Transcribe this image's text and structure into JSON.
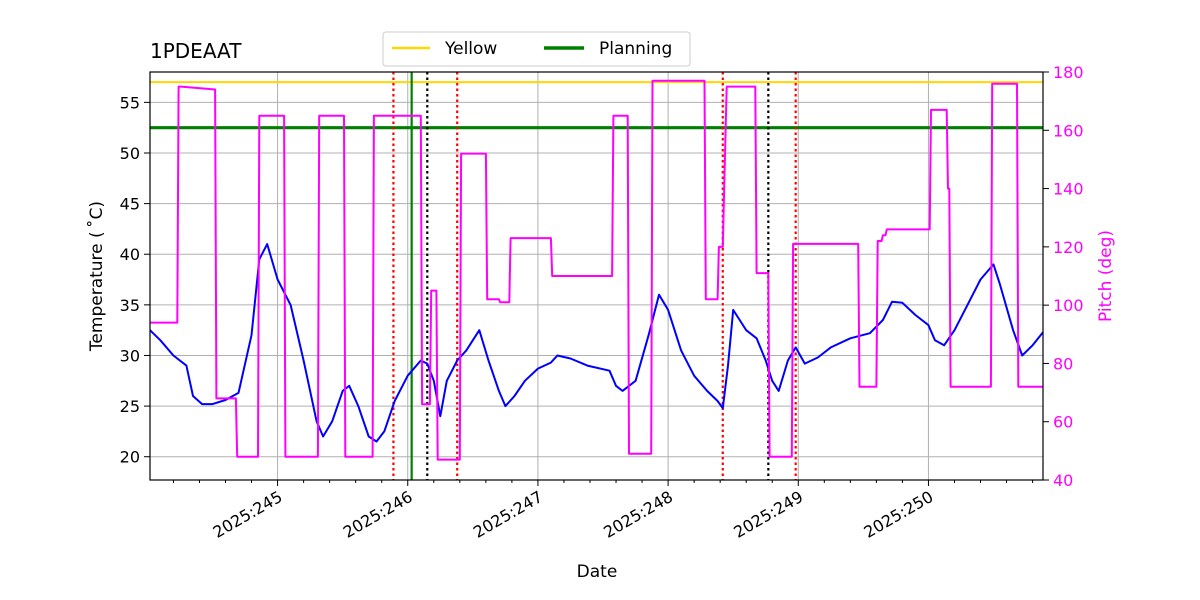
{
  "chart_data": {
    "type": "line",
    "title": "1PDEAAT",
    "xlabel": "Date",
    "ylabel": "Temperature ($^\\circ$C)",
    "ylabel_display": "Temperature ( ˚C)",
    "y2label": "Pitch (deg)",
    "xlim": [
      244.02,
      250.88
    ],
    "ylim": [
      17.7,
      58.0
    ],
    "y2lim": [
      40,
      180
    ],
    "x_ticks": [
      {
        "value": 245,
        "label": "2025:245"
      },
      {
        "value": 246,
        "label": "2025:246"
      },
      {
        "value": 247,
        "label": "2025:247"
      },
      {
        "value": 248,
        "label": "2025:248"
      },
      {
        "value": 249,
        "label": "2025:249"
      },
      {
        "value": 250,
        "label": "2025:250"
      }
    ],
    "y_ticks": [
      20,
      25,
      30,
      35,
      40,
      45,
      50,
      55
    ],
    "y2_ticks": [
      40,
      60,
      80,
      100,
      120,
      140,
      160,
      180
    ],
    "grid": true,
    "legend": {
      "placement": "top-center",
      "entries": [
        {
          "name": "Yellow",
          "color": "#ffd700"
        },
        {
          "name": "Planning",
          "color": "#008000"
        }
      ]
    },
    "hlines": [
      {
        "name": "Yellow",
        "value": 57.0,
        "color": "#ffd700"
      },
      {
        "name": "Planning",
        "value": 52.5,
        "color": "#008000"
      }
    ],
    "vlines": [
      {
        "name": "planning-marker",
        "x": 246.03,
        "color": "#008000",
        "style": "solid"
      },
      {
        "name": "red-marker",
        "x": 245.89,
        "color": "#ff0000",
        "style": "dotted"
      },
      {
        "name": "red-marker",
        "x": 246.38,
        "color": "#ff0000",
        "style": "dotted"
      },
      {
        "name": "red-marker",
        "x": 248.42,
        "color": "#ff0000",
        "style": "dotted"
      },
      {
        "name": "red-marker",
        "x": 248.98,
        "color": "#ff0000",
        "style": "dotted"
      },
      {
        "name": "black-marker",
        "x": 246.15,
        "color": "#000000",
        "style": "dotted"
      },
      {
        "name": "black-marker",
        "x": 248.77,
        "color": "#000000",
        "style": "dotted"
      }
    ],
    "series": [
      {
        "name": "Temperature",
        "axis": "left",
        "color": "#0000ff",
        "x": [
          244.02,
          244.1,
          244.2,
          244.3,
          244.35,
          244.42,
          244.5,
          244.6,
          244.7,
          244.8,
          244.86,
          244.92,
          245.0,
          245.1,
          245.2,
          245.3,
          245.35,
          245.42,
          245.5,
          245.55,
          245.62,
          245.7,
          245.76,
          245.82,
          245.9,
          246.0,
          246.1,
          246.15,
          246.2,
          246.25,
          246.3,
          246.38,
          246.45,
          246.55,
          246.62,
          246.7,
          246.75,
          246.82,
          246.9,
          247.0,
          247.1,
          247.15,
          247.25,
          247.38,
          247.55,
          247.6,
          247.65,
          247.75,
          247.85,
          247.93,
          248.0,
          248.1,
          248.2,
          248.3,
          248.38,
          248.42,
          248.46,
          248.5,
          248.55,
          248.6,
          248.68,
          248.75,
          248.8,
          248.85,
          248.92,
          248.98,
          249.05,
          249.15,
          249.25,
          249.4,
          249.55,
          249.65,
          249.72,
          249.8,
          249.9,
          250.0,
          250.05,
          250.12,
          250.2,
          250.3,
          250.4,
          250.5,
          250.55,
          250.65,
          250.72,
          250.8,
          250.88
        ],
        "y": [
          32.5,
          31.5,
          30.0,
          29.0,
          26.0,
          25.2,
          25.2,
          25.6,
          26.3,
          32.0,
          39.5,
          41.0,
          37.5,
          35.0,
          29.5,
          23.5,
          22.0,
          23.5,
          26.5,
          27.0,
          25.0,
          22.0,
          21.5,
          22.5,
          25.5,
          28.0,
          29.5,
          29.2,
          27.5,
          24.0,
          27.5,
          29.5,
          30.5,
          32.5,
          29.5,
          26.5,
          25.0,
          26.0,
          27.5,
          28.7,
          29.3,
          30.0,
          29.7,
          29.0,
          28.5,
          27.0,
          26.5,
          27.5,
          32.0,
          36.0,
          34.5,
          30.5,
          28.0,
          26.5,
          25.5,
          24.8,
          29.0,
          34.5,
          33.5,
          32.5,
          31.7,
          29.5,
          27.5,
          26.5,
          29.5,
          30.8,
          29.2,
          29.8,
          30.8,
          31.7,
          32.2,
          33.5,
          35.3,
          35.2,
          34.0,
          33.0,
          31.5,
          31.0,
          32.5,
          35.0,
          37.5,
          39.0,
          37.0,
          32.5,
          30.0,
          31.0,
          32.3
        ]
      },
      {
        "name": "Pitch",
        "axis": "right",
        "color": "#ff00ff",
        "x": [
          244.02,
          244.23,
          244.24,
          244.26,
          244.52,
          244.53,
          244.68,
          244.69,
          244.85,
          244.86,
          245.05,
          245.06,
          245.31,
          245.32,
          245.51,
          245.52,
          245.73,
          245.74,
          246.1,
          246.11,
          246.17,
          246.18,
          246.22,
          246.23,
          246.4,
          246.41,
          246.6,
          246.61,
          246.7,
          246.71,
          246.78,
          246.79,
          247.1,
          247.11,
          247.57,
          247.58,
          247.69,
          247.7,
          247.87,
          247.88,
          248.28,
          248.29,
          248.38,
          248.39,
          248.42,
          248.43,
          248.45,
          248.46,
          248.67,
          248.68,
          248.77,
          248.78,
          248.95,
          248.96,
          249.46,
          249.47,
          249.6,
          249.61,
          249.64,
          249.65,
          249.67,
          249.68,
          250.01,
          250.02,
          250.14,
          250.15,
          250.16,
          250.17,
          250.48,
          250.49,
          250.68,
          250.69,
          250.88
        ],
        "y": [
          94,
          94,
          175,
          175,
          174,
          68,
          68,
          48,
          48,
          165,
          165,
          48,
          48,
          165,
          165,
          48,
          48,
          165,
          165,
          66,
          66,
          105,
          105,
          47,
          47,
          152,
          152,
          102,
          102,
          101,
          101,
          123,
          123,
          110,
          110,
          165,
          165,
          49,
          49,
          177,
          177,
          102,
          102,
          120,
          120,
          139,
          175,
          175,
          175,
          111,
          111,
          48,
          48,
          121,
          121,
          72,
          72,
          122,
          122,
          124,
          124,
          126,
          126,
          167,
          167,
          140,
          140,
          72,
          72,
          176,
          176,
          72,
          72
        ]
      }
    ]
  }
}
